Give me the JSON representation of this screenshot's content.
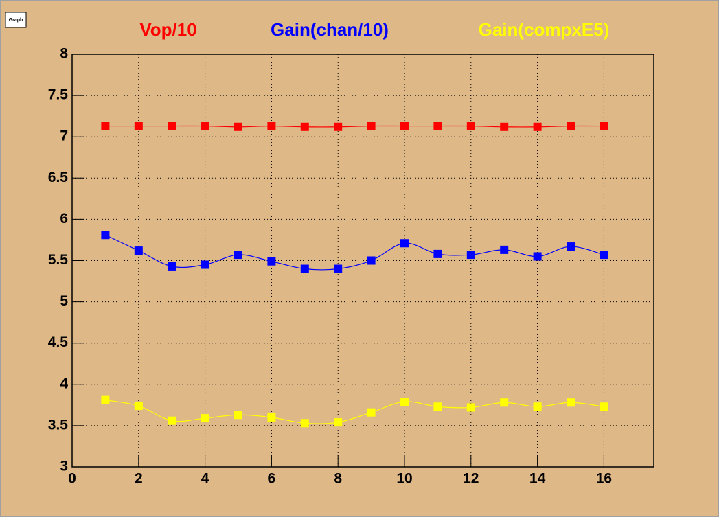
{
  "chart_data": {
    "type": "line",
    "x": [
      1,
      2,
      3,
      4,
      5,
      6,
      7,
      8,
      9,
      10,
      11,
      12,
      13,
      14,
      15,
      16
    ],
    "series": [
      {
        "name": "Vop/10",
        "color": "#ff0000",
        "values": [
          7.13,
          7.13,
          7.13,
          7.13,
          7.12,
          7.13,
          7.12,
          7.12,
          7.13,
          7.13,
          7.13,
          7.13,
          7.12,
          7.12,
          7.13,
          7.13
        ]
      },
      {
        "name": "Gain(chan/10)",
        "color": "#0000ff",
        "values": [
          5.81,
          5.62,
          5.43,
          5.45,
          5.57,
          5.49,
          5.4,
          5.4,
          5.5,
          5.71,
          5.58,
          5.57,
          5.63,
          5.55,
          5.67,
          5.57
        ]
      },
      {
        "name": "Gain(compxE5)",
        "color": "#ffff00",
        "values": [
          3.81,
          3.74,
          3.56,
          3.59,
          3.63,
          3.6,
          3.53,
          3.54,
          3.66,
          3.79,
          3.73,
          3.72,
          3.78,
          3.73,
          3.78,
          3.73
        ]
      }
    ],
    "xlim": [
      0,
      17.5
    ],
    "xticks": [
      0,
      2,
      4,
      6,
      8,
      10,
      12,
      14,
      16
    ],
    "ylim": [
      3,
      8
    ],
    "yticks": [
      3,
      3.5,
      4,
      4.5,
      5,
      5.5,
      6,
      6.5,
      7,
      7.5,
      8
    ],
    "grid": true,
    "button": "Graph"
  }
}
